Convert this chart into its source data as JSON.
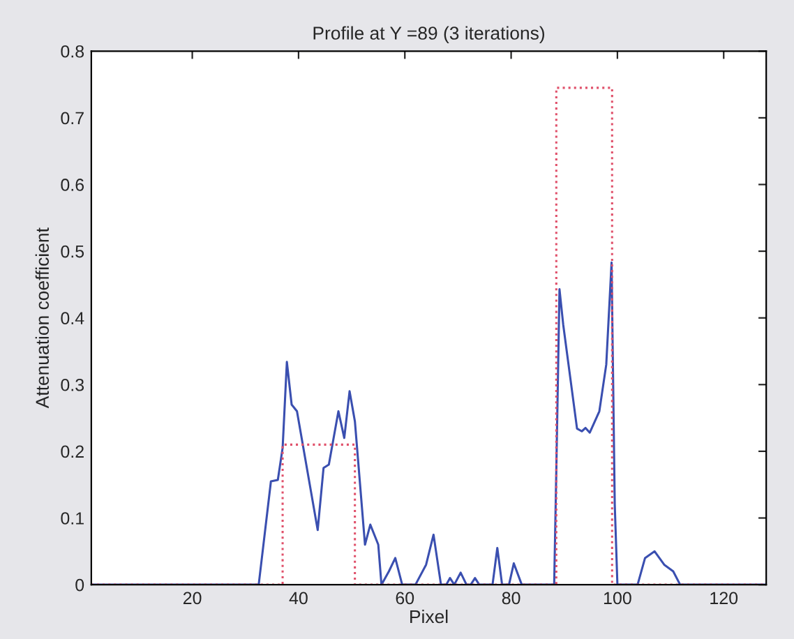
{
  "chart_data": {
    "type": "line",
    "title": "Profile at Y =89 (3 iterations)",
    "xlabel": "Pixel",
    "ylabel": "Attenuation coefficient",
    "xlim": [
      1,
      128
    ],
    "ylim": [
      0,
      0.8
    ],
    "xticks": [
      20,
      40,
      60,
      80,
      100,
      120
    ],
    "yticks": [
      0,
      0.1,
      0.2,
      0.3,
      0.4,
      0.5,
      0.6,
      0.7,
      0.8
    ],
    "grid": false,
    "legend": false,
    "series": [
      {
        "color": "#3a4fb0",
        "line_style": "solid",
        "x": [
          1,
          32.5,
          34.8,
          36.1,
          37,
          37.8,
          38.7,
          39.7,
          43.6,
          44.7,
          45.7,
          47.5,
          48.6,
          49.6,
          50.6,
          52.5,
          53.5,
          55,
          55.6,
          57,
          58.2,
          59.5,
          62,
          64,
          65.4,
          66.8,
          67.8,
          68.5,
          69.3,
          70.5,
          71.6,
          72.4,
          73.2,
          74,
          76.5,
          77.4,
          78.3,
          79.6,
          80.5,
          82,
          88.1,
          88.5,
          89.1,
          89.8,
          92.4,
          93.3,
          94,
          94.8,
          96.6,
          97.9,
          98.9,
          99.5,
          100,
          103.8,
          105.2,
          107,
          108.8,
          110.5,
          111.8,
          128
        ],
        "values": [
          0,
          0,
          0.155,
          0.157,
          0.205,
          0.334,
          0.27,
          0.26,
          0.082,
          0.175,
          0.18,
          0.26,
          0.22,
          0.29,
          0.245,
          0.06,
          0.09,
          0.06,
          0,
          0.02,
          0.04,
          0,
          0,
          0.03,
          0.075,
          0,
          0,
          0.01,
          0,
          0.018,
          0,
          0,
          0.01,
          0,
          0,
          0.055,
          0,
          0,
          0.032,
          0,
          0,
          0.17,
          0.443,
          0.39,
          0.234,
          0.23,
          0.235,
          0.228,
          0.26,
          0.33,
          0.483,
          0.12,
          0,
          0,
          0.04,
          0.05,
          0.03,
          0.02,
          0,
          0
        ]
      },
      {
        "color": "#e0506a",
        "line_style": "dotted",
        "x": [
          1,
          37,
          37,
          50.6,
          50.6,
          88.5,
          88.5,
          99,
          99,
          128
        ],
        "values": [
          0,
          0,
          0.21,
          0.21,
          0,
          0,
          0.745,
          0.745,
          0,
          0
        ]
      }
    ]
  }
}
